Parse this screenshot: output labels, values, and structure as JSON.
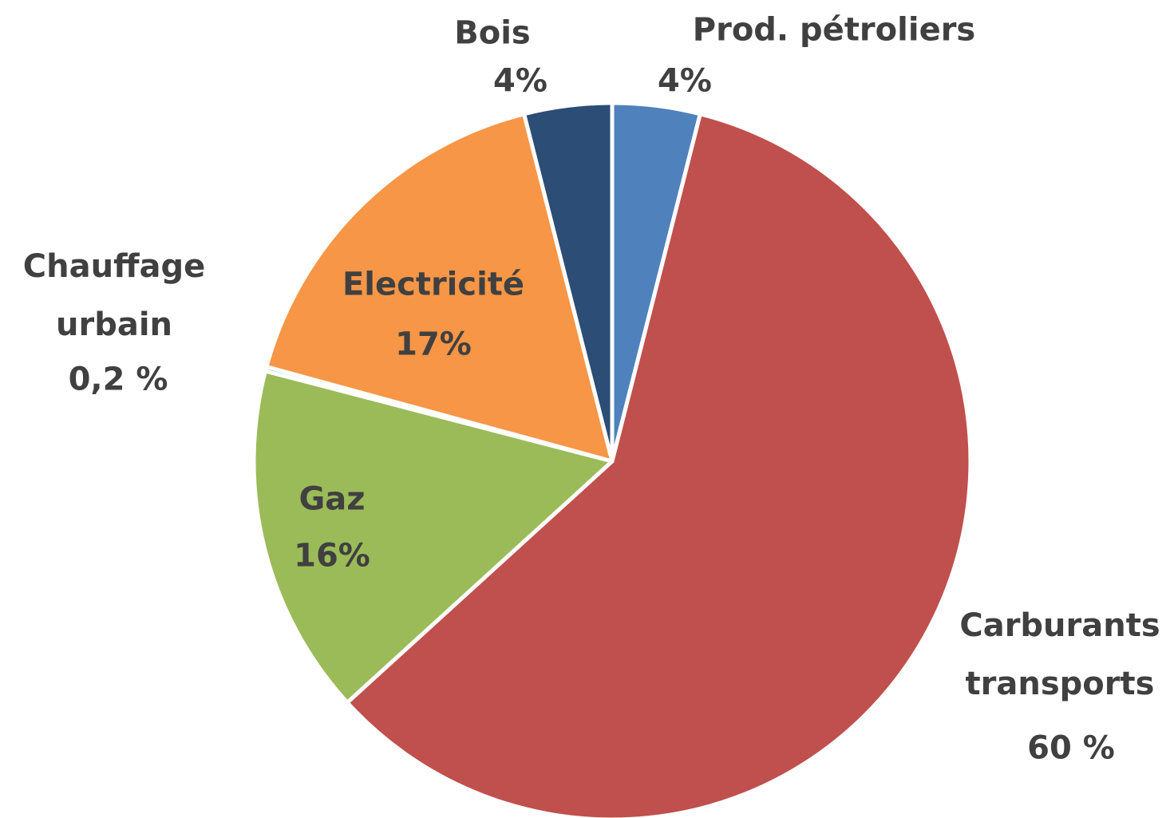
{
  "chart_data": {
    "type": "pie",
    "categories": [
      "Prod. pétroliers",
      "Carburants transports",
      "Gaz",
      "Chauffage urbain",
      "Electricité",
      "Bois"
    ],
    "values": [
      4,
      60,
      16,
      0.2,
      17,
      4
    ],
    "value_labels": [
      "4%",
      "60 %",
      "16%",
      "0,2 %",
      "17%",
      "4%"
    ],
    "colors": [
      "#4f81bd",
      "#c0504d",
      "#9bbb59",
      "#4bacc6",
      "#f79646",
      "#2c4d75"
    ]
  }
}
